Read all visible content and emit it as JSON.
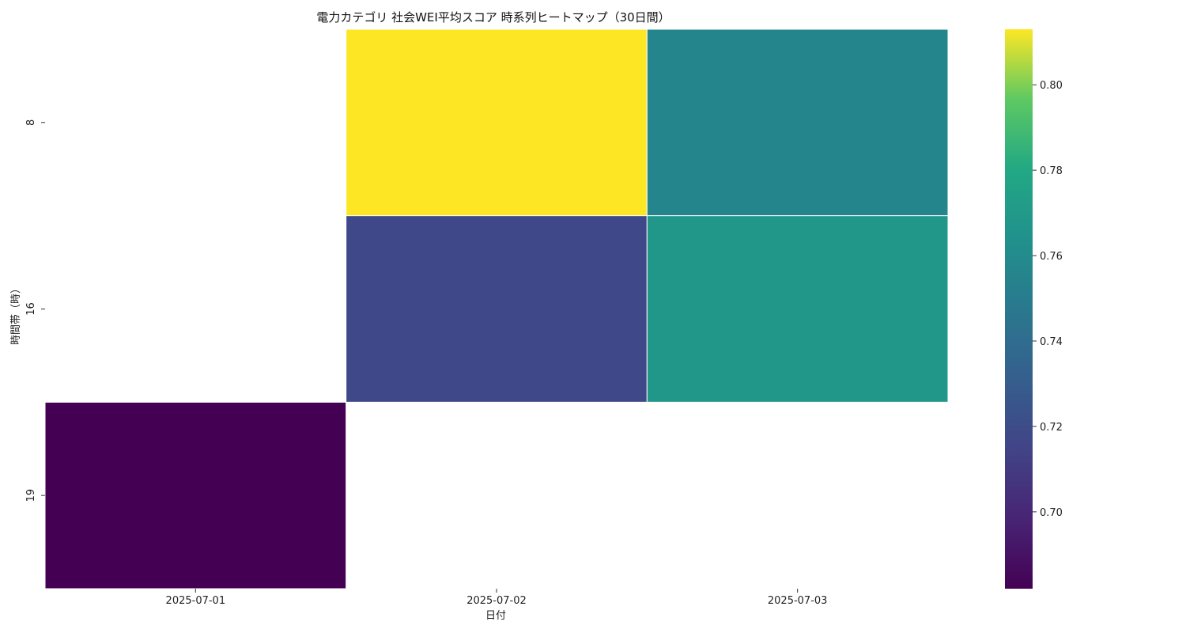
{
  "chart_data": {
    "type": "heatmap",
    "title": "電力カテゴリ 社会WEI平均スコア 時系列ヒートマップ（30日間）",
    "xlabel": "日付",
    "ylabel": "時間帯（時）",
    "x_categories": [
      "2025-07-01",
      "2025-07-02",
      "2025-07-03"
    ],
    "y_categories": [
      "8",
      "16",
      "19"
    ],
    "values": [
      [
        null,
        0.813,
        0.756
      ],
      [
        null,
        0.717,
        0.768
      ],
      [
        0.682,
        null,
        null
      ]
    ],
    "colorbar": {
      "colormap": "viridis",
      "range": [
        0.682,
        0.813
      ],
      "ticks": [
        "0.70",
        "0.72",
        "0.74",
        "0.76",
        "0.78",
        "0.80"
      ],
      "tick_values": [
        0.7,
        0.72,
        0.74,
        0.76,
        0.78,
        0.8
      ]
    }
  }
}
